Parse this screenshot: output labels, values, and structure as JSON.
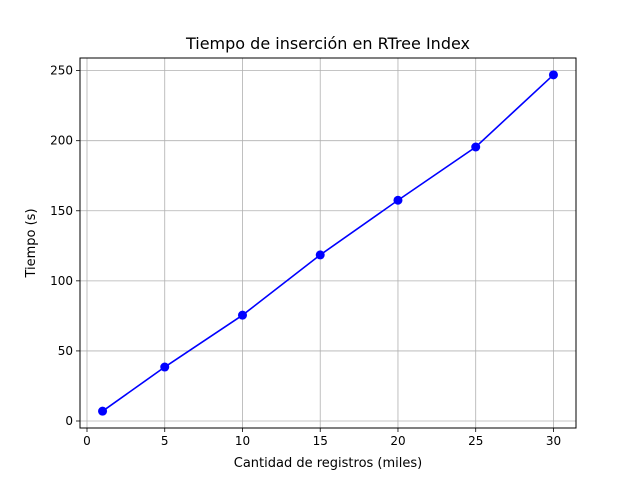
{
  "chart_data": {
    "type": "line",
    "title": "Tiempo de inserción en RTree Index",
    "xlabel": "Cantidad de registros (miles)",
    "ylabel": "Tiempo (s)",
    "x": [
      1,
      5,
      10,
      15,
      20,
      25,
      30
    ],
    "series": [
      {
        "values": [
          7,
          38.5,
          75.5,
          118.5,
          157.5,
          195.5,
          247
        ]
      }
    ],
    "xlim": [
      -0.45,
      31.45
    ],
    "ylim": [
      -5,
      259
    ],
    "xticks": [
      0,
      5,
      10,
      15,
      20,
      25,
      30
    ],
    "yticks": [
      0,
      50,
      100,
      150,
      200,
      250
    ],
    "grid": true,
    "line_color": "#0000ff",
    "marker": "circle"
  }
}
